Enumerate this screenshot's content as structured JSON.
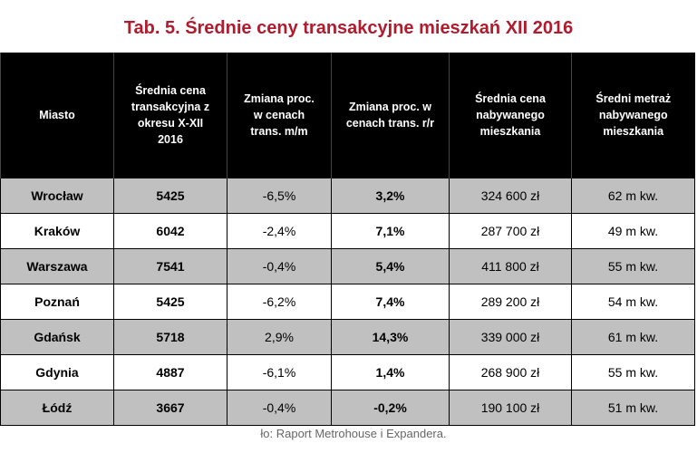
{
  "title": "Tab. 5. Średnie ceny transakcyjne mieszkań XII 2016",
  "table": {
    "headers": [
      "Miasto",
      "Średnia cena transakcyjna z okresu X-XII 2016",
      "Zmiana proc. w cenach trans. m/m",
      "Zmiana proc. w cenach trans. r/r",
      "Średnia cena nabywanego mieszkania",
      "Średni metraż nabywanego mieszkania"
    ],
    "rows": [
      [
        "Wrocław",
        "5425",
        "-6,5%",
        "3,2%",
        "324 600 zł",
        "62 m kw."
      ],
      [
        "Kraków",
        "6042",
        "-2,4%",
        "7,1%",
        "287 700 zł",
        "49 m kw."
      ],
      [
        "Warszawa",
        "7541",
        "-0,4%",
        "5,4%",
        "411 800 zł",
        "55 m kw."
      ],
      [
        "Poznań",
        "5425",
        "-6,2%",
        "7,4%",
        "289 200 zł",
        "54 m kw."
      ],
      [
        "Gdańsk",
        "5718",
        "2,9%",
        "14,3%",
        "339 000 zł",
        "61 m kw."
      ],
      [
        "Gdynia",
        "4887",
        "-6,1%",
        "1,4%",
        "268 900 zł",
        "55 m kw."
      ],
      [
        "Łódź",
        "3667",
        "-0,4%",
        "-0,2%",
        "190 100 zł",
        "51 m kw."
      ]
    ]
  },
  "source": "ło: Raport Metrohouse i Expandera."
}
